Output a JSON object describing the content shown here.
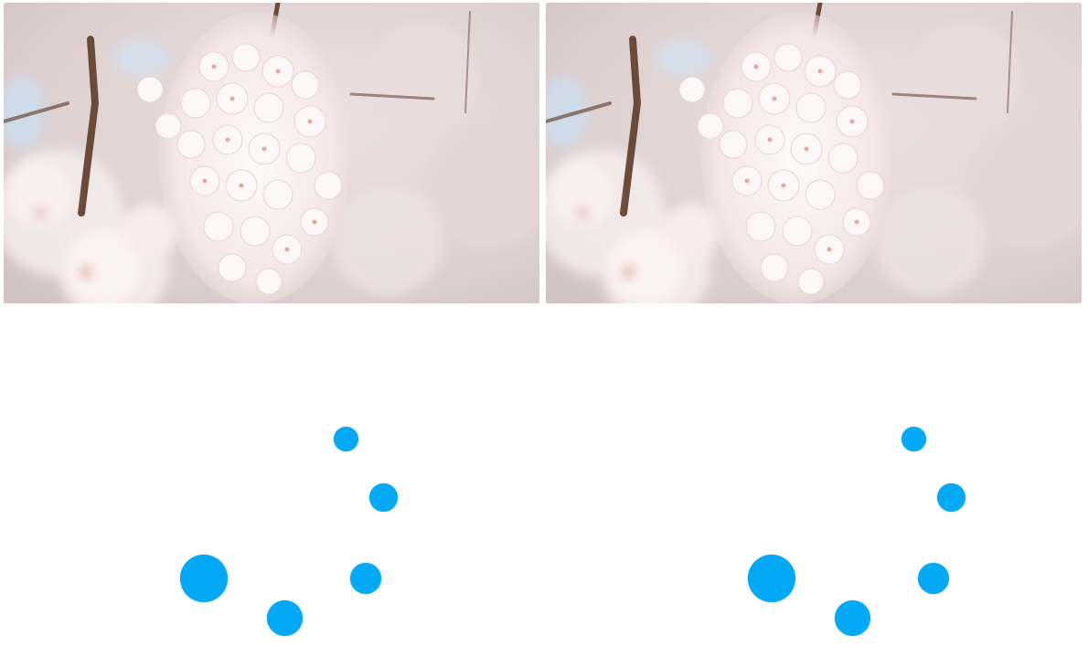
{
  "images": [
    {
      "id": "left",
      "subject": "cherry-blossom-photo"
    },
    {
      "id": "right",
      "subject": "cherry-blossom-photo"
    }
  ],
  "spinners": [
    {
      "id": "left",
      "color": "#03a9f4",
      "dots": 5
    },
    {
      "id": "right",
      "color": "#03a9f4",
      "dots": 5
    }
  ],
  "colors": {
    "background": "#ffffff",
    "accent": "#03a9f4",
    "blossom_light": "#fbf4f4",
    "blossom_pink": "#e9c9c9",
    "branch": "#6b4a3a",
    "sky": "#cfdbe8"
  }
}
